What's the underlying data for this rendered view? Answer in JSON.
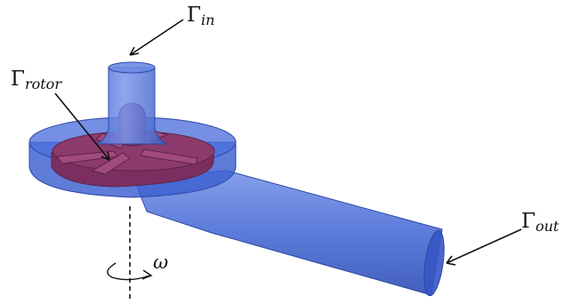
{
  "labels": {
    "inlet": {
      "symbol": "Γ",
      "sub": "in"
    },
    "rotor": {
      "symbol": "Γ",
      "sub": "rotor"
    },
    "outlet": {
      "symbol": "Γ",
      "sub": "out"
    },
    "omega": "ω"
  },
  "colors": {
    "housing": "#3a5fd0",
    "housing_edge": "#2c49a8",
    "rotor": "#8a3a6a",
    "rotor_dark": "#6a2a52",
    "ink": "#111111"
  }
}
